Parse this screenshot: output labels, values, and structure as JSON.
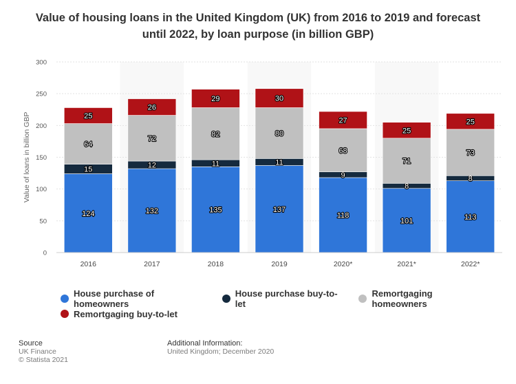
{
  "chart_data": {
    "type": "bar",
    "stacked": true,
    "title": "Value of housing loans in the United Kingdom (UK) from 2016 to 2019 and forecast until 2022, by loan purpose (in billion GBP)",
    "ylabel": "Value of loans in billion GBP",
    "xlabel": "",
    "ylim": [
      0,
      300
    ],
    "yticks": [
      0,
      50,
      100,
      150,
      200,
      250,
      300
    ],
    "grid": true,
    "legend_position": "bottom",
    "categories": [
      "2016",
      "2017",
      "2018",
      "2019",
      "2020*",
      "2021*",
      "2022*"
    ],
    "series": [
      {
        "name": "House purchase of homeowners",
        "color": "#2f76d9",
        "values": [
          124,
          132,
          135,
          137,
          118,
          101,
          113
        ]
      },
      {
        "name": "House purchase buy-to-let",
        "color": "#152a3e",
        "values": [
          15,
          12,
          11,
          11,
          9,
          8,
          8
        ]
      },
      {
        "name": "Remortgaging homeowners",
        "color": "#c0c0c0",
        "values": [
          64,
          72,
          82,
          80,
          68,
          71,
          73
        ]
      },
      {
        "name": "Remortgaging buy-to-let",
        "color": "#b01217",
        "values": [
          25,
          26,
          29,
          30,
          27,
          25,
          25
        ]
      }
    ]
  },
  "footer": {
    "source_heading": "Source",
    "source_lines": [
      "UK Finance",
      "© Statista 2021"
    ],
    "info_heading": "Additional Information:",
    "info_lines": [
      "United Kingdom; December 2020"
    ]
  }
}
